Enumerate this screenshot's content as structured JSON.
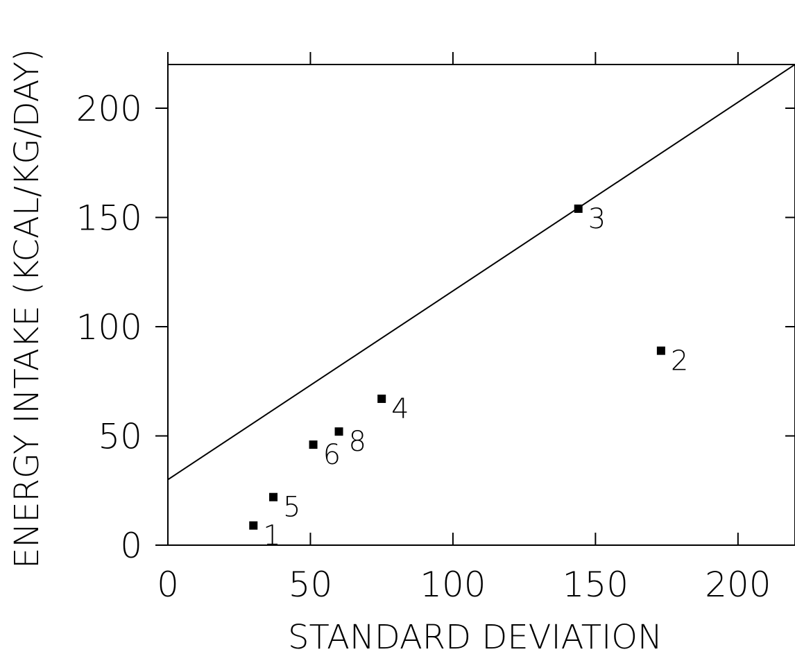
{
  "chart_data": {
    "type": "scatter",
    "title": "",
    "xlabel": "STANDARD DEVIATION",
    "ylabel": "ENERGY INTAKE (KCAL/KG/DAY)",
    "xlim": [
      0,
      220
    ],
    "ylim": [
      0,
      220
    ],
    "xticks": [
      0,
      50,
      100,
      150,
      200
    ],
    "yticks": [
      0,
      50,
      100,
      150,
      200
    ],
    "xtick_labels": [
      "0",
      "50",
      "100",
      "150",
      "200"
    ],
    "ytick_labels": [
      "0",
      "50",
      "100",
      "150",
      "200"
    ],
    "grid": false,
    "points": [
      {
        "label": "1",
        "x": 30,
        "y": 9
      },
      {
        "label": "5",
        "x": 37,
        "y": 22
      },
      {
        "label": "6",
        "x": 51,
        "y": 46
      },
      {
        "label": "8",
        "x": 60,
        "y": 52
      },
      {
        "label": "4",
        "x": 75,
        "y": 67
      },
      {
        "label": "3",
        "x": 144,
        "y": 154
      },
      {
        "label": "2",
        "x": 173,
        "y": 89
      }
    ],
    "line": {
      "x": [
        0,
        220
      ],
      "y": [
        30,
        220
      ]
    },
    "marker_color": "#000000",
    "line_color": "#000000"
  }
}
